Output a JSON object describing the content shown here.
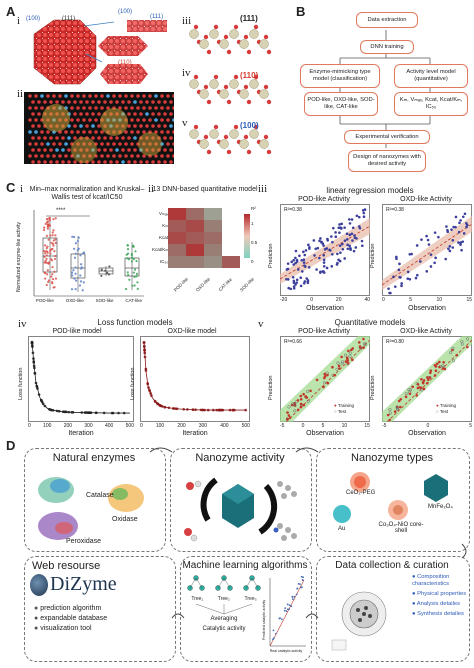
{
  "panel_a": {
    "letter": "A",
    "sub_i": "i",
    "sub_ii": "ii",
    "sub_iii": "iii",
    "sub_iv": "iv",
    "sub_v": "v",
    "facet_100_small": "(100)",
    "facet_111_small": "(111)",
    "facet_100_inset": "(100)",
    "facet_111_inset": "(111)",
    "facet_110_inset": "(110)",
    "label_111": "(111)",
    "label_110": "(110)",
    "label_100": "(100)"
  },
  "panel_b": {
    "letter": "B",
    "data_extraction": "Data extraction",
    "dnn_training": "DNN training",
    "enzyme_model": "Enzyme-mimicking type model (classification)",
    "activity_model": "Activity level model (quantitative)",
    "enzyme_types": "POD-like, OXD-like, SOD-like, CAT-like",
    "activity_params": "Kₘ, Vₘₐₓ, Kcat, Kcat/Kₘ, IC₅₀",
    "verification": "Experimental verification",
    "design": "Design of nanozymes with desired activity"
  },
  "panel_c": {
    "letter": "C",
    "sub_i": "i",
    "sub_ii": "ii",
    "sub_iii": "iii",
    "sub_iv": "iv",
    "sub_v": "v",
    "i_title": "Min–max normalization and Kruskal–Wallis test of kcat/IC50",
    "i_ylabel": "Normalized enzyme-like activity",
    "i_sig": "****",
    "i_cats": [
      "POD-like",
      "OXD-like",
      "SOD-like",
      "CAT-like"
    ],
    "ii_title": "13 DNN-based quantitative model",
    "ii_rows": [
      "Vₘₐₓ",
      "Kₘ",
      "Kcat",
      "Kcat/Kₘ",
      "IC₅₀"
    ],
    "ii_cols": [
      "POD-like",
      "OXD-like",
      "CAT-like",
      "SOD-like"
    ],
    "ii_legend_label": "R²",
    "ii_legend_ticks": [
      "1",
      "0.5",
      "0"
    ],
    "iii_title": "linear regression models",
    "iii_left_title": "POD-like Activity",
    "iii_right_title": "OXD-like Activity",
    "iii_left_r2": "R²=0.38",
    "iii_right_r2": "R²=0.38",
    "iii_xlabel": "Observation",
    "iii_ylabel": "Prediction",
    "iii_left_xticks": [
      "-20",
      "0",
      "20",
      "40"
    ],
    "iii_right_xticks": [
      "0",
      "5",
      "10",
      "15"
    ],
    "iv_title": "Loss function models",
    "iv_left_title": "POD-like model",
    "iv_right_title": "OXD-like model",
    "iv_xlabel": "Iteration",
    "iv_ylabel": "Loss function",
    "iv_xticks": [
      "0",
      "100",
      "200",
      "300",
      "400",
      "500"
    ],
    "v_title": "Quantitative models",
    "v_left_title": "POD-like Activity",
    "v_right_title": "OXD-like Activity",
    "v_left_r2": "R²=0.66",
    "v_right_r2": "R²=0.80",
    "v_xlabel": "Observation",
    "v_ylabel": "Prediction",
    "v_legend_training": "Training",
    "v_legend_test": "Test",
    "v_left_xticks": [
      "-5",
      "0",
      "5",
      "10",
      "15"
    ],
    "v_right_xticks": [
      "-5",
      "0",
      "5"
    ]
  },
  "panel_d": {
    "letter": "D",
    "natural_title": "Natural enzymes",
    "catalase": "Catalase",
    "oxidase": "Oxidase",
    "peroxidase": "Peroxidase",
    "activity_title": "Nanozyme activity",
    "types_title": "Nanozyme types",
    "ceo2": "CeO₂-PEG",
    "mnfe": "MnFe₂O₄",
    "au": "Au",
    "co3o4": "Co₃O₄-NiO core-shell",
    "web_title": "Web resourse",
    "dizyme": "DiZyme",
    "web_items": [
      "prediction algorithm",
      "expandable database",
      "visualization tool"
    ],
    "ml_title": "Machine learning algorithms",
    "tree1": "Tree₁",
    "tree2": "Tree₂",
    "tree3": "Tree₃",
    "averaging": "Averaging",
    "catalytic": "Catalytic activity",
    "pred_axis": "Predicted catalytic activity",
    "real_axis": "Real catalytic activity",
    "curation_title": "Data collection & curation",
    "curation_items": [
      "Composition characteristics",
      "Physical properties",
      "Analysis detailes",
      "Synthesis detailes"
    ]
  },
  "chart_data": [
    {
      "type": "line",
      "title": "POD-like model",
      "xlabel": "Iteration",
      "ylabel": "Loss function",
      "x": [
        0,
        10,
        20,
        40,
        60,
        80,
        100,
        150,
        200,
        300,
        400,
        500
      ],
      "y": [
        1.0,
        0.7,
        0.45,
        0.25,
        0.15,
        0.1,
        0.08,
        0.06,
        0.05,
        0.045,
        0.04,
        0.04
      ],
      "xlim": [
        0,
        500
      ]
    },
    {
      "type": "line",
      "title": "OXD-like model",
      "xlabel": "Iteration",
      "ylabel": "Loss function",
      "x": [
        0,
        10,
        20,
        40,
        60,
        80,
        100,
        150,
        200,
        300,
        400,
        500
      ],
      "y": [
        1.0,
        0.6,
        0.4,
        0.25,
        0.18,
        0.14,
        0.12,
        0.1,
        0.09,
        0.08,
        0.08,
        0.08
      ],
      "xlim": [
        0,
        500
      ]
    }
  ]
}
